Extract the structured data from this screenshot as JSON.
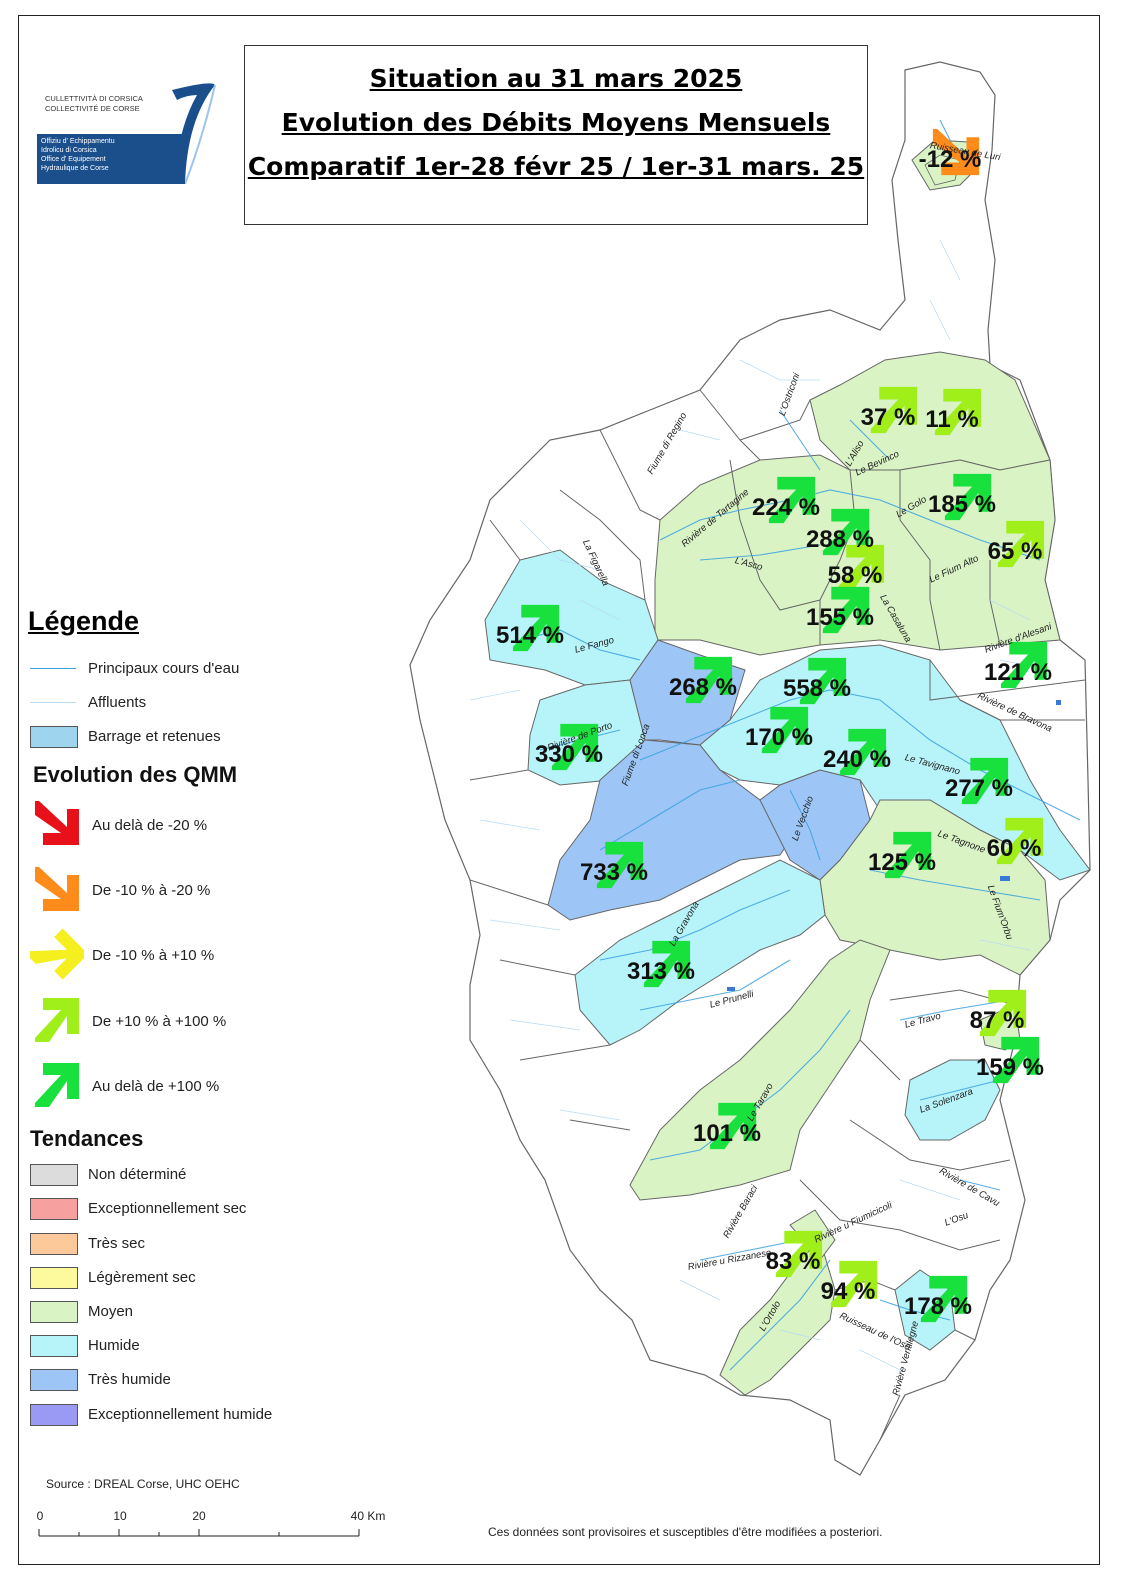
{
  "title": {
    "line1": "Situation au 31 mars 2025",
    "line2": "Evolution des Débits Moyens Mensuels",
    "line3": "Comparatif 1er-28 févr 25 / 1er-31 mars. 25"
  },
  "logo": {
    "line1": "CULLETTIVITÀ DI CORSICA",
    "line2": "COLLECTIVITÉ DE CORSE",
    "line3": "Offiziu d' Echippamentu",
    "line4": "Idrolicu di Corsica",
    "line5": "Office d' Equipement",
    "line6": "Hydraulique de Corse"
  },
  "legend": {
    "title": "Légende",
    "items": [
      {
        "label": "Principaux cours d'eau"
      },
      {
        "label": "Affluents"
      },
      {
        "label": "Barrage et retenues",
        "color": "#9fd4ef"
      }
    ],
    "qmm_title": "Evolution des QMM",
    "qmm": [
      {
        "label": "Au delà de -20 %",
        "color": "#e8111a"
      },
      {
        "label": "De -10 % à -20 %",
        "color": "#ff8c1a"
      },
      {
        "label": "De -10 % à +10 %",
        "color": "#f5ef1f"
      },
      {
        "label": "De +10 % à +100 %",
        "color": "#a0ee1a"
      },
      {
        "label": "Au delà de +100 %",
        "color": "#18e03c"
      }
    ],
    "tendances_title": "Tendances",
    "tendances": [
      {
        "label": "Non déterminé",
        "color": "#dcdcdc"
      },
      {
        "label": "Exceptionnellement sec",
        "color": "#f7a0a0"
      },
      {
        "label": "Très sec",
        "color": "#fbc99a"
      },
      {
        "label": "Légèrement sec",
        "color": "#fdfa9e"
      },
      {
        "label": "Moyen",
        "color": "#d9f3c5"
      },
      {
        "label": "Humide",
        "color": "#b7f4f9"
      },
      {
        "label": "Très humide",
        "color": "#9dc6f6"
      },
      {
        "label": "Exceptionnellement humide",
        "color": "#9a9af4"
      }
    ]
  },
  "stations": [
    {
      "value": "-12 %",
      "class": "De -10 % à -20 %"
    },
    {
      "value": "37 %",
      "class": "De +10 % à +100 %"
    },
    {
      "value": "11 %",
      "class": "De +10 % à +100 %"
    },
    {
      "value": "224 %",
      "class": "Au delà de +100 %"
    },
    {
      "value": "185 %",
      "class": "Au delà de +100 %"
    },
    {
      "value": "288 %",
      "class": "Au delà de +100 %"
    },
    {
      "value": "65 %",
      "class": "De +10 % à +100 %"
    },
    {
      "value": "58 %",
      "class": "De +10 % à +100 %"
    },
    {
      "value": "155 %",
      "class": "Au delà de +100 %"
    },
    {
      "value": "514 %",
      "class": "Au delà de +100 %"
    },
    {
      "value": "121 %",
      "class": "Au delà de +100 %"
    },
    {
      "value": "268 %",
      "class": "Au delà de +100 %"
    },
    {
      "value": "558 %",
      "class": "Au delà de +100 %"
    },
    {
      "value": "170 %",
      "class": "Au delà de +100 %"
    },
    {
      "value": "330 %",
      "class": "Au delà de +100 %"
    },
    {
      "value": "240 %",
      "class": "Au delà de +100 %"
    },
    {
      "value": "277 %",
      "class": "Au delà de +100 %"
    },
    {
      "value": "60 %",
      "class": "De +10 % à +100 %"
    },
    {
      "value": "125 %",
      "class": "Au delà de +100 %"
    },
    {
      "value": "733 %",
      "class": "Au delà de +100 %"
    },
    {
      "value": "313 %",
      "class": "Au delà de +100 %"
    },
    {
      "value": "87 %",
      "class": "De +10 % à +100 %"
    },
    {
      "value": "159 %",
      "class": "Au delà de +100 %"
    },
    {
      "value": "101 %",
      "class": "Au delà de +100 %"
    },
    {
      "value": "83 %",
      "class": "De +10 % à +100 %"
    },
    {
      "value": "94 %",
      "class": "De +10 % à +100 %"
    },
    {
      "value": "178 %",
      "class": "Au delà de +100 %"
    }
  ],
  "rivers": [
    "Ruisseau de Luri",
    "L'Ostriconi",
    "L'Aliso",
    "Le Bevinco",
    "Fiume di Regino",
    "Rivière de Tartagine",
    "L'Asco",
    "Le Golo",
    "La Casaluna",
    "Le Fium Alto",
    "La Figarella",
    "Le Fango",
    "Rivière d'Alesani",
    "Rivière de Bravona",
    "Rivière de Porto",
    "Fiume di Lonca",
    "Le Tavignano",
    "Le Vecchio",
    "Le Tagnone",
    "Le Fium'Orbu",
    "La Gravona",
    "Le Prunelli",
    "Le Travo",
    "La Solenzara",
    "Le Taravo",
    "Rivière de Cavu",
    "Rivière Baraci",
    "Rivière u Fiumicicoli",
    "L'Osu",
    "Rivière u Rizzanese",
    "L'Ortolo",
    "Ruisseau de l'Oso",
    "Rivière Ventilegne"
  ],
  "scale": {
    "labels": [
      "0",
      "10",
      "20",
      "40 Km"
    ]
  },
  "source": "Source : DREAL Corse, UHC OEHC",
  "note": "Ces données sont provisoires et susceptibles d'être modifiées a posteriori."
}
